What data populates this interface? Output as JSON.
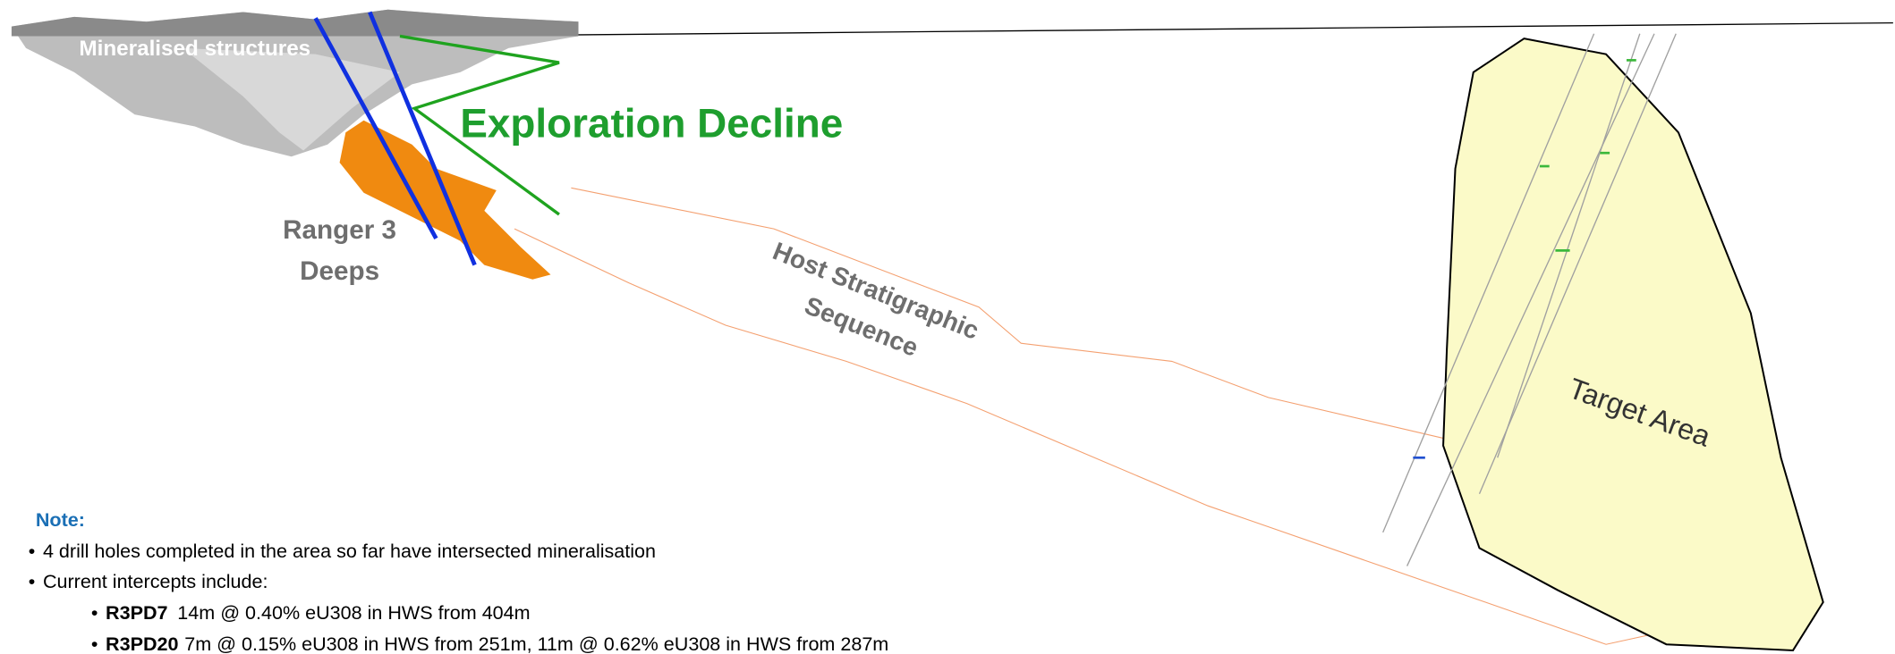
{
  "labels": {
    "mineralised_structures": "Mineralised structures",
    "exploration_decline": "Exploration Decline",
    "ranger_deeps": [
      "Ranger 3",
      "Deeps"
    ],
    "host_sequence": [
      "Host Stratigraphic",
      "Sequence"
    ],
    "target_area": "Target Area"
  },
  "note": {
    "title": "Note:",
    "bullets": [
      "4 drill holes completed in the area so far have intersected mineralisation",
      "Current intercepts include:"
    ],
    "intercepts": [
      {
        "hole": "R3PD7",
        "text": "14m @ 0.40% eU308 in HWS from 404m"
      },
      {
        "hole": "R3PD20",
        "text": "7m @ 0.15% eU308 in HWS from 251m, 11m @ 0.62% eU308 in HWS from 287m"
      }
    ]
  }
}
